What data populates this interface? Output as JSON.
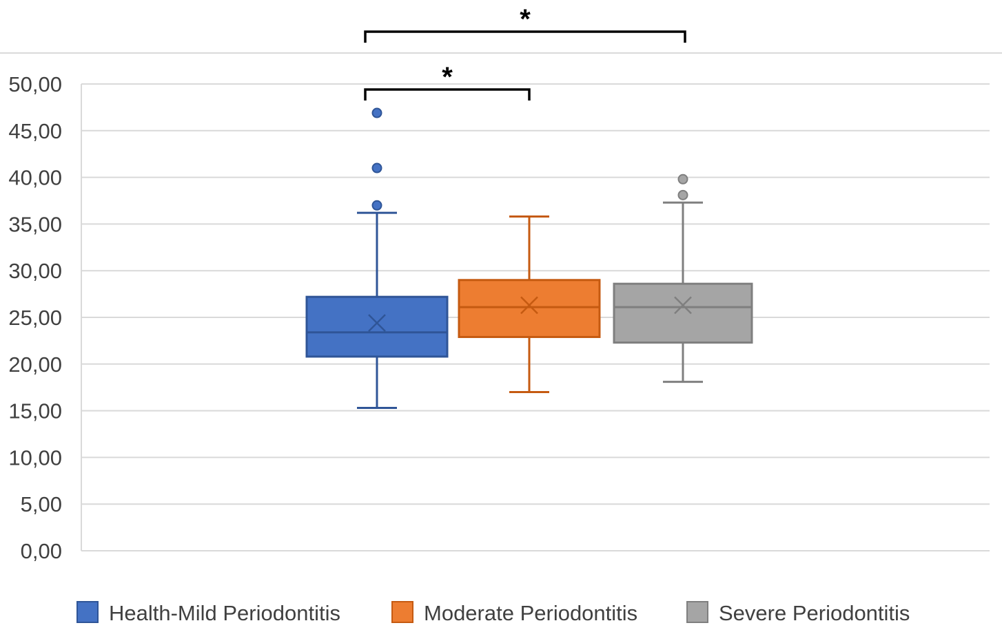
{
  "chart_data": {
    "type": "box",
    "title": "",
    "xlabel": "",
    "ylabel": "",
    "ylim": [
      0,
      50
    ],
    "ytick_step": 5,
    "ytick_labels": [
      "0,00",
      "5,00",
      "10,00",
      "15,00",
      "20,00",
      "25,00",
      "30,00",
      "35,00",
      "40,00",
      "45,00",
      "50,00"
    ],
    "grid": true,
    "legend_position": "bottom",
    "series": [
      {
        "name": "Health-Mild Periodontitis",
        "color": "#4472C4",
        "stroke": "#2F5597",
        "min": 15.3,
        "q1": 20.8,
        "median": 23.4,
        "q3": 27.2,
        "max": 36.2,
        "mean": 24.4,
        "outliers": [
          37.0,
          41.0,
          46.9
        ]
      },
      {
        "name": "Moderate Periodontitis",
        "color": "#ED7D31",
        "stroke": "#C55A11",
        "min": 17.0,
        "q1": 22.9,
        "median": 26.1,
        "q3": 29.0,
        "max": 35.8,
        "mean": 26.3,
        "outliers": []
      },
      {
        "name": "Severe Periodontitis",
        "color": "#A5A5A5",
        "stroke": "#7F7F7F",
        "min": 18.1,
        "q1": 22.3,
        "median": 26.1,
        "q3": 28.6,
        "max": 37.3,
        "mean": 26.3,
        "outliers": [
          38.1,
          39.8
        ]
      }
    ],
    "significance": [
      {
        "from": 0,
        "to": 1,
        "label": "*"
      },
      {
        "from": 0,
        "to": 2,
        "label": "*"
      }
    ]
  }
}
